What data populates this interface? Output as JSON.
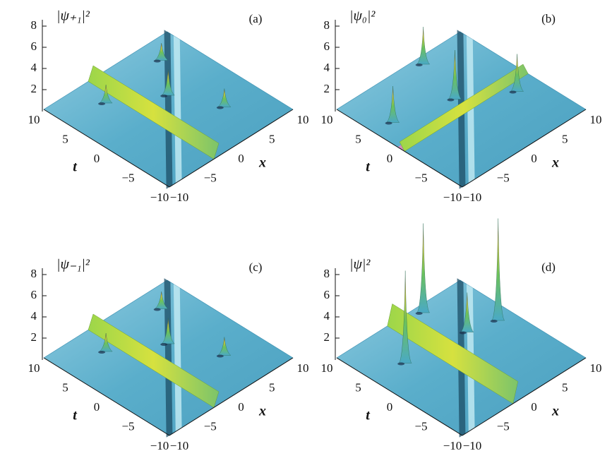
{
  "panels": [
    {
      "label": "(a)",
      "zlabel": "|ψ₊₁|²",
      "zticks": [
        "2",
        "4",
        "6",
        "8"
      ],
      "tticks": [
        "10",
        "5",
        "0",
        "−5",
        "−10"
      ],
      "xticks": [
        "−10",
        "−5",
        "0",
        "5",
        "10"
      ],
      "taxis": "t",
      "xaxis": "x"
    },
    {
      "label": "(b)",
      "zlabel": "|ψ₀|²",
      "zticks": [
        "2",
        "4",
        "6",
        "8"
      ],
      "tticks": [
        "10",
        "5",
        "0",
        "−5",
        "−10"
      ],
      "xticks": [
        "−10",
        "−5",
        "0",
        "5",
        "10"
      ],
      "taxis": "t",
      "xaxis": "x"
    },
    {
      "label": "(c)",
      "zlabel": "|ψ₋₁|²",
      "zticks": [
        "2",
        "4",
        "6",
        "8"
      ],
      "tticks": [
        "10",
        "5",
        "0",
        "−5",
        "−10"
      ],
      "xticks": [
        "−10",
        "−5",
        "0",
        "5",
        "10"
      ],
      "taxis": "t",
      "xaxis": "x"
    },
    {
      "label": "(d)",
      "zlabel": "|ψ|²",
      "zticks": [
        "2",
        "4",
        "6",
        "8"
      ],
      "tticks": [
        "10",
        "5",
        "0",
        "−5",
        "−10"
      ],
      "xticks": [
        "−10",
        "−5",
        "0",
        "5",
        "10"
      ],
      "taxis": "t",
      "xaxis": "x"
    }
  ]
}
